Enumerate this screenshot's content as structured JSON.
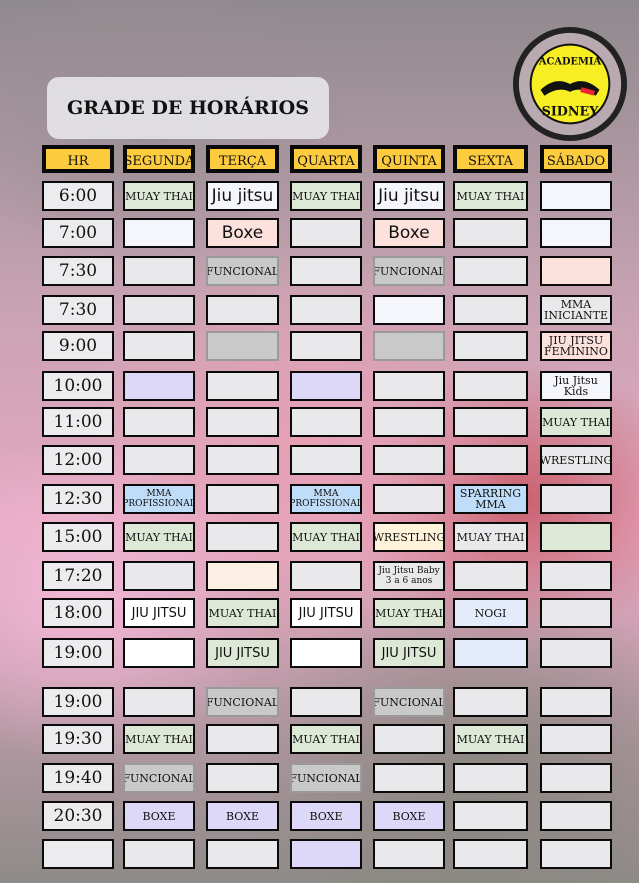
{
  "title": "GRADE DE HORÁRIOS",
  "logo": {
    "top_text": "ACADEMIA",
    "bottom_text": "SIDNEY"
  },
  "colors": {
    "w": "#f5f6fb",
    "gr": "#e9e9ec",
    "g": "#dde8d6",
    "p": "#fde1dd",
    "l": "#ddd7f8",
    "b": "#bfdcf8",
    "f": "#c9c9c9",
    "c": "#fff3dc",
    "pe": "#fcefe4",
    "lb": "#e4ecfb",
    "wh": "#ffffff",
    "header": "#fdcb3e"
  },
  "headers": [
    "HR",
    "SEGUNDA",
    "TERÇA",
    "QUARTA",
    "QUINTA",
    "SEXTA",
    "SÁBADO"
  ],
  "rows": [
    {
      "time": "6:00",
      "cells": [
        [
          "MUAY THAI",
          "g"
        ],
        [
          "Jiu jitsu",
          "w",
          "big"
        ],
        [
          "MUAY THAI",
          "g"
        ],
        [
          "Jiu jitsu",
          "w",
          "big"
        ],
        [
          "MUAY THAI",
          "g"
        ],
        [
          "",
          "w"
        ]
      ]
    },
    {
      "time": "7:00",
      "cells": [
        [
          "",
          "w"
        ],
        [
          "Boxe",
          "p",
          "big"
        ],
        [
          "",
          "gr"
        ],
        [
          "Boxe",
          "p",
          "big"
        ],
        [
          "",
          "gr"
        ],
        [
          "",
          "w"
        ]
      ]
    },
    {
      "time": "7:30",
      "cells": [
        [
          "",
          "gr"
        ],
        [
          "FUNCIONAL",
          "f"
        ],
        [
          "",
          "gr"
        ],
        [
          "FUNCIONAL",
          "f"
        ],
        [
          "",
          "gr"
        ],
        [
          "",
          "p"
        ]
      ]
    },
    {
      "time": "7:30",
      "cells": [
        [
          "",
          "gr"
        ],
        [
          "",
          "gr"
        ],
        [
          "",
          "gr"
        ],
        [
          "",
          "w"
        ],
        [
          "",
          "gr"
        ],
        [
          "MMA INICIANTE",
          "gr"
        ]
      ]
    },
    {
      "time": "9:00",
      "cells": [
        [
          "",
          "gr"
        ],
        [
          "",
          "f"
        ],
        [
          "",
          "gr"
        ],
        [
          "",
          "f"
        ],
        [
          "",
          "gr"
        ],
        [
          "JIU JITSU FEMININO",
          "p"
        ]
      ]
    },
    {
      "time": "10:00",
      "cells": [
        [
          "",
          "l"
        ],
        [
          "",
          "gr"
        ],
        [
          "",
          "l"
        ],
        [
          "",
          "gr"
        ],
        [
          "",
          "gr"
        ],
        [
          "Jiu Jitsu Kids",
          "w"
        ]
      ]
    },
    {
      "time": "11:00",
      "cells": [
        [
          "",
          "gr"
        ],
        [
          "",
          "gr"
        ],
        [
          "",
          "gr"
        ],
        [
          "",
          "gr"
        ],
        [
          "",
          "gr"
        ],
        [
          "MUAY THAI",
          "g"
        ]
      ]
    },
    {
      "time": "12:00",
      "cells": [
        [
          "",
          "gr"
        ],
        [
          "",
          "gr"
        ],
        [
          "",
          "gr"
        ],
        [
          "",
          "gr"
        ],
        [
          "",
          "gr"
        ],
        [
          "WRESTLING",
          "gr"
        ]
      ]
    },
    {
      "time": "12:30",
      "cells": [
        [
          "MMA PROFISSIONAL",
          "b",
          "small"
        ],
        [
          "",
          "gr"
        ],
        [
          "MMA PROFISSIONAL",
          "b",
          "small"
        ],
        [
          "",
          "gr"
        ],
        [
          "SPARRING MMA",
          "b"
        ],
        [
          "",
          "gr"
        ]
      ]
    },
    {
      "time": "15:00",
      "cells": [
        [
          "MUAY THAI",
          "g"
        ],
        [
          "",
          "gr"
        ],
        [
          "MUAY THAI",
          "g"
        ],
        [
          "WRESTLING",
          "c"
        ],
        [
          "MUAY THAI",
          "gr"
        ],
        [
          "",
          "g"
        ]
      ]
    },
    {
      "time": "17:20",
      "cells": [
        [
          "",
          "gr"
        ],
        [
          "",
          "pe"
        ],
        [
          "",
          "gr"
        ],
        [
          "Jiu Jitsu Baby 3 a 6 anos",
          "gr",
          "small"
        ],
        [
          "",
          "gr"
        ],
        [
          "",
          "gr"
        ]
      ]
    },
    {
      "time": "18:00",
      "cells": [
        [
          "JIU JITSU",
          "wh",
          "sans"
        ],
        [
          "MUAY THAI",
          "g"
        ],
        [
          "JIU JITSU",
          "wh",
          "sans"
        ],
        [
          "MUAY THAI",
          "g"
        ],
        [
          "NOGI",
          "lb"
        ],
        [
          "",
          "gr"
        ]
      ]
    },
    {
      "time": "19:00",
      "cells": [
        [
          "",
          "wh"
        ],
        [
          "JIU JITSU",
          "g",
          "sans"
        ],
        [
          "",
          "wh"
        ],
        [
          "JIU JITSU",
          "g",
          "sans"
        ],
        [
          "",
          "lb"
        ],
        [
          "",
          "gr"
        ]
      ]
    },
    {
      "time": "19:00",
      "cells": [
        [
          "",
          "gr"
        ],
        [
          "FUNCIONAL",
          "f"
        ],
        [
          "",
          "gr"
        ],
        [
          "FUNCIONAL",
          "f"
        ],
        [
          "",
          "gr"
        ],
        [
          "",
          "gr"
        ]
      ]
    },
    {
      "time": "19:30",
      "cells": [
        [
          "MUAY THAI",
          "g"
        ],
        [
          "",
          "gr"
        ],
        [
          "MUAY THAI",
          "g"
        ],
        [
          "",
          "gr"
        ],
        [
          "MUAY THAI",
          "g"
        ],
        [
          "",
          "gr"
        ]
      ]
    },
    {
      "time": "19:40",
      "cells": [
        [
          "FUNCIONAL",
          "f"
        ],
        [
          "",
          "gr"
        ],
        [
          "FUNCIONAL",
          "f"
        ],
        [
          "",
          "gr"
        ],
        [
          "",
          "gr"
        ],
        [
          "",
          "gr"
        ]
      ]
    },
    {
      "time": "20:30",
      "cells": [
        [
          "BOXE",
          "l"
        ],
        [
          "BOXE",
          "l"
        ],
        [
          "BOXE",
          "l"
        ],
        [
          "BOXE",
          "l"
        ],
        [
          "",
          "gr"
        ],
        [
          "",
          "gr"
        ]
      ]
    },
    {
      "time": "",
      "cells": [
        [
          "",
          "gr"
        ],
        [
          "",
          "gr"
        ],
        [
          "",
          "l"
        ],
        [
          "",
          "gr"
        ],
        [
          "",
          "gr"
        ],
        [
          "",
          "gr"
        ]
      ]
    }
  ]
}
